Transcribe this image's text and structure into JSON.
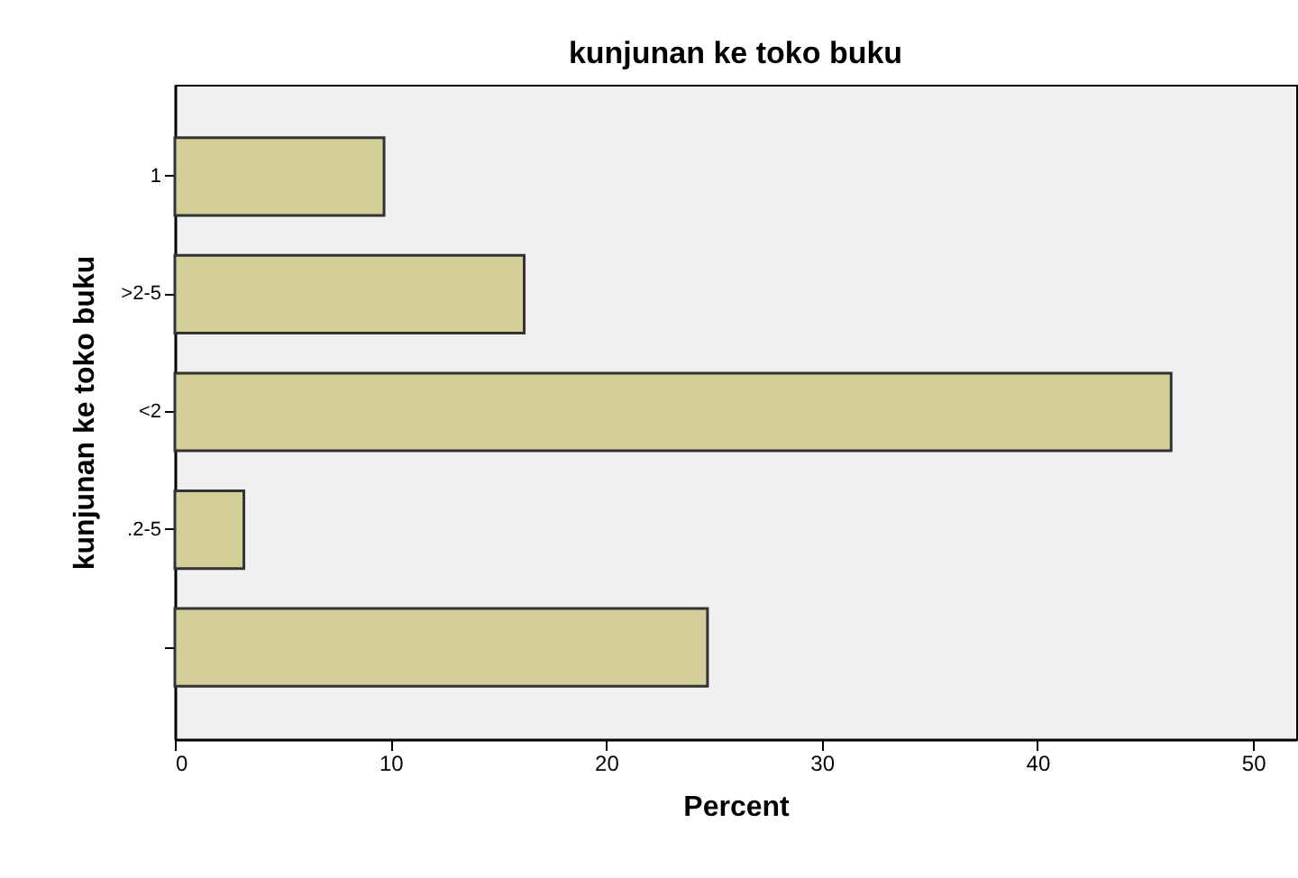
{
  "chart_data": {
    "type": "bar",
    "orientation": "horizontal",
    "title": "kunjunan ke toko buku",
    "xlabel": "Percent",
    "ylabel": "kunjunan ke toko buku",
    "categories": [
      "1",
      ">2-5",
      "<2",
      ".2-5",
      null
    ],
    "values": [
      9.7,
      16.2,
      46.2,
      3.2,
      24.7
    ],
    "color": "#d4cf98",
    "xlim": [
      0,
      52
    ],
    "xticks": [
      0,
      10,
      20,
      30,
      40,
      50
    ],
    "grid": false
  }
}
